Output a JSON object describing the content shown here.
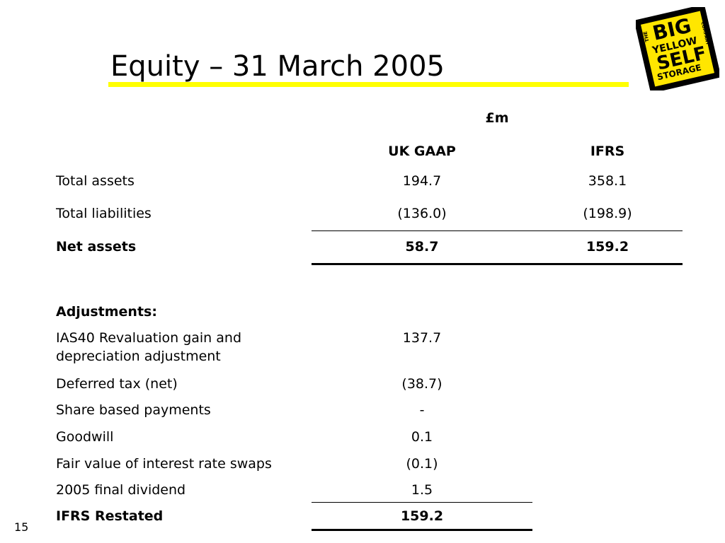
{
  "slide": {
    "title": "Equity – 31 March 2005",
    "page_number": "15",
    "accent_color": "#ffff00"
  },
  "logo": {
    "lines": [
      "THE",
      "BIG",
      "YELLOW",
      "SELF",
      "STORAGE",
      "COMPANY"
    ],
    "colors": {
      "background": "#ffe600",
      "border": "#000000",
      "text": "#000000"
    }
  },
  "table": {
    "unit_header": "£m",
    "col_headers": [
      "UK GAAP",
      "IFRS"
    ],
    "rows": [
      {
        "label": "Total assets",
        "ukgaap": "194.7",
        "ifrs": "358.1"
      },
      {
        "label": "Total liabilities",
        "ukgaap": "(136.0)",
        "ifrs": "(198.9)"
      },
      {
        "label": "Net assets",
        "ukgaap": "58.7",
        "ifrs": "159.2"
      }
    ],
    "adjustments_heading": "Adjustments:",
    "adjustments": [
      {
        "label": "IAS40 Revaluation gain and depreciation adjustment",
        "value": "137.7"
      },
      {
        "label": "Deferred tax (net)",
        "value": "(38.7)"
      },
      {
        "label": "Share based payments",
        "value": "-"
      },
      {
        "label": "Goodwill",
        "value": "0.1"
      },
      {
        "label": "Fair value of interest rate swaps",
        "value": "(0.1)"
      },
      {
        "label": "2005 final dividend",
        "value": "1.5"
      }
    ],
    "restated": {
      "label": "IFRS Restated",
      "value": "159.2"
    }
  }
}
